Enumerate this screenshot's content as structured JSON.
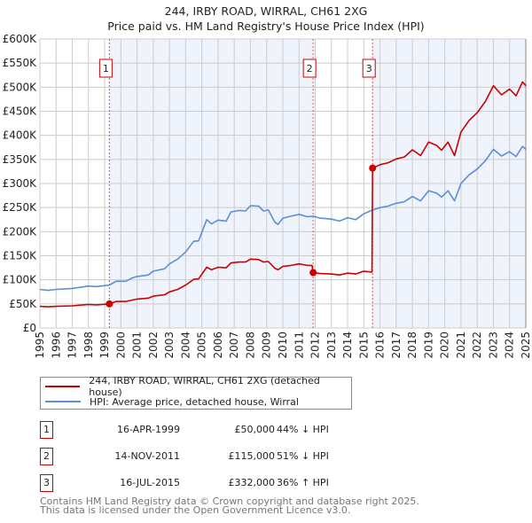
{
  "chart_data": {
    "type": "line",
    "title": "244, IRBY ROAD, WIRRAL, CH61 2XG",
    "subtitle": "Price paid vs. HM Land Registry's House Price Index (HPI)",
    "xlabel": "",
    "ylabel": "",
    "xlim": [
      1995,
      2025
    ],
    "ylim": [
      0,
      600000
    ],
    "grid": true,
    "y_ticks": [
      "£0",
      "£50K",
      "£100K",
      "£150K",
      "£200K",
      "£250K",
      "£300K",
      "£350K",
      "£400K",
      "£450K",
      "£500K",
      "£550K",
      "£600K"
    ],
    "x_ticks": [
      "1995",
      "1996",
      "1997",
      "1998",
      "1999",
      "2000",
      "2001",
      "2002",
      "2003",
      "2004",
      "2005",
      "2006",
      "2007",
      "2008",
      "2009",
      "2010",
      "2011",
      "2012",
      "2013",
      "2014",
      "2015",
      "2016",
      "2017",
      "2018",
      "2019",
      "2020",
      "2021",
      "2022",
      "2023",
      "2024",
      "2025"
    ],
    "legend": [
      {
        "label": "244, IRBY ROAD, WIRRAL, CH61 2XG (detached house)",
        "color": "#cc0000"
      },
      {
        "label": "HPI: Average price, detached house, Wirral",
        "color": "#5b8fd6"
      }
    ],
    "legend_placement": "below",
    "series": [
      {
        "name": "property",
        "color": "#cc0000",
        "points_k": [
          [
            1995,
            45
          ],
          [
            1995.5,
            44
          ],
          [
            1996,
            45
          ],
          [
            1997,
            46
          ],
          [
            1998,
            49
          ],
          [
            1998.5,
            48
          ],
          [
            1999.29,
            50
          ],
          [
            1999.7,
            55
          ],
          [
            2000.3,
            55
          ],
          [
            2000.7,
            58
          ],
          [
            2001,
            60
          ],
          [
            2001.7,
            62
          ],
          [
            2002,
            66
          ],
          [
            2002.7,
            69
          ],
          [
            2003,
            75
          ],
          [
            2003.5,
            80
          ],
          [
            2004,
            89
          ],
          [
            2004.5,
            101
          ],
          [
            2004.8,
            102
          ],
          [
            2005.3,
            126
          ],
          [
            2005.6,
            121
          ],
          [
            2006,
            126
          ],
          [
            2006.5,
            125
          ],
          [
            2006.8,
            135
          ],
          [
            2007.3,
            137
          ],
          [
            2007.7,
            137
          ],
          [
            2008,
            143
          ],
          [
            2008.5,
            142
          ],
          [
            2008.8,
            137
          ],
          [
            2009.1,
            138
          ],
          [
            2009.5,
            124
          ],
          [
            2009.7,
            121
          ],
          [
            2010,
            128
          ],
          [
            2010.5,
            130
          ],
          [
            2011,
            133
          ],
          [
            2011.5,
            130
          ],
          [
            2011.8,
            130
          ],
          [
            2011.87,
            115
          ],
          [
            2012.3,
            113
          ],
          [
            2013,
            112
          ],
          [
            2013.5,
            110
          ],
          [
            2014,
            114
          ],
          [
            2014.5,
            112
          ],
          [
            2015,
            118
          ],
          [
            2015.5,
            116
          ],
          [
            2015.54,
            332
          ],
          [
            2016,
            339
          ],
          [
            2016.5,
            343
          ],
          [
            2017,
            351
          ],
          [
            2017.5,
            355
          ],
          [
            2018,
            370
          ],
          [
            2018.5,
            358
          ],
          [
            2019,
            386
          ],
          [
            2019.5,
            379
          ],
          [
            2019.8,
            369
          ],
          [
            2020.2,
            386
          ],
          [
            2020.6,
            358
          ],
          [
            2021,
            407
          ],
          [
            2021.5,
            431
          ],
          [
            2022,
            447
          ],
          [
            2022.5,
            470
          ],
          [
            2023,
            503
          ],
          [
            2023.5,
            484
          ],
          [
            2024,
            496
          ],
          [
            2024.4,
            482
          ],
          [
            2024.8,
            511
          ],
          [
            2025,
            503
          ]
        ]
      },
      {
        "name": "hpi",
        "color": "#5b8fd6",
        "points_k": [
          [
            1995,
            80
          ],
          [
            1995.5,
            78
          ],
          [
            1996,
            80
          ],
          [
            1997,
            82
          ],
          [
            1998,
            87
          ],
          [
            1998.5,
            86
          ],
          [
            1999.3,
            89
          ],
          [
            1999.7,
            97
          ],
          [
            2000.3,
            97
          ],
          [
            2000.7,
            104
          ],
          [
            2001,
            107
          ],
          [
            2001.7,
            110
          ],
          [
            2002,
            118
          ],
          [
            2002.7,
            123
          ],
          [
            2003,
            133
          ],
          [
            2003.5,
            143
          ],
          [
            2004,
            158
          ],
          [
            2004.5,
            180
          ],
          [
            2004.8,
            181
          ],
          [
            2005.3,
            225
          ],
          [
            2005.6,
            216
          ],
          [
            2006,
            224
          ],
          [
            2006.5,
            222
          ],
          [
            2006.8,
            241
          ],
          [
            2007.3,
            244
          ],
          [
            2007.7,
            243
          ],
          [
            2008,
            254
          ],
          [
            2008.5,
            253
          ],
          [
            2008.8,
            243
          ],
          [
            2009.1,
            245
          ],
          [
            2009.5,
            220
          ],
          [
            2009.7,
            215
          ],
          [
            2010,
            228
          ],
          [
            2010.5,
            232
          ],
          [
            2011,
            236
          ],
          [
            2011.5,
            231
          ],
          [
            2011.87,
            232
          ],
          [
            2012.3,
            228
          ],
          [
            2013,
            226
          ],
          [
            2013.5,
            222
          ],
          [
            2014,
            229
          ],
          [
            2014.5,
            225
          ],
          [
            2015,
            237
          ],
          [
            2015.54,
            245
          ],
          [
            2016,
            250
          ],
          [
            2016.5,
            253
          ],
          [
            2017,
            259
          ],
          [
            2017.5,
            262
          ],
          [
            2018,
            273
          ],
          [
            2018.5,
            264
          ],
          [
            2019,
            285
          ],
          [
            2019.5,
            280
          ],
          [
            2019.8,
            272
          ],
          [
            2020.2,
            285
          ],
          [
            2020.6,
            264
          ],
          [
            2021,
            300
          ],
          [
            2021.5,
            318
          ],
          [
            2022,
            330
          ],
          [
            2022.5,
            347
          ],
          [
            2023,
            371
          ],
          [
            2023.5,
            357
          ],
          [
            2024,
            366
          ],
          [
            2024.4,
            356
          ],
          [
            2024.8,
            377
          ],
          [
            2025,
            371
          ]
        ]
      }
    ],
    "sales": [
      {
        "num": "1",
        "year": 1999.29,
        "value_k": 50,
        "date": "16-APR-1999",
        "price": "£50,000",
        "hpi": "44% ↓ HPI"
      },
      {
        "num": "2",
        "year": 2011.87,
        "value_k": 115,
        "date": "14-NOV-2011",
        "price": "£115,000",
        "hpi": "51% ↓ HPI"
      },
      {
        "num": "3",
        "year": 2015.54,
        "value_k": 332,
        "date": "16-JUL-2015",
        "price": "£332,000",
        "hpi": "36% ↑ HPI"
      }
    ],
    "shade_color": "#eef3fc"
  },
  "footer": {
    "line1": "Contains HM Land Registry data © Crown copyright and database right 2025.",
    "line2": "This data is licensed under the Open Government Licence v3.0."
  }
}
